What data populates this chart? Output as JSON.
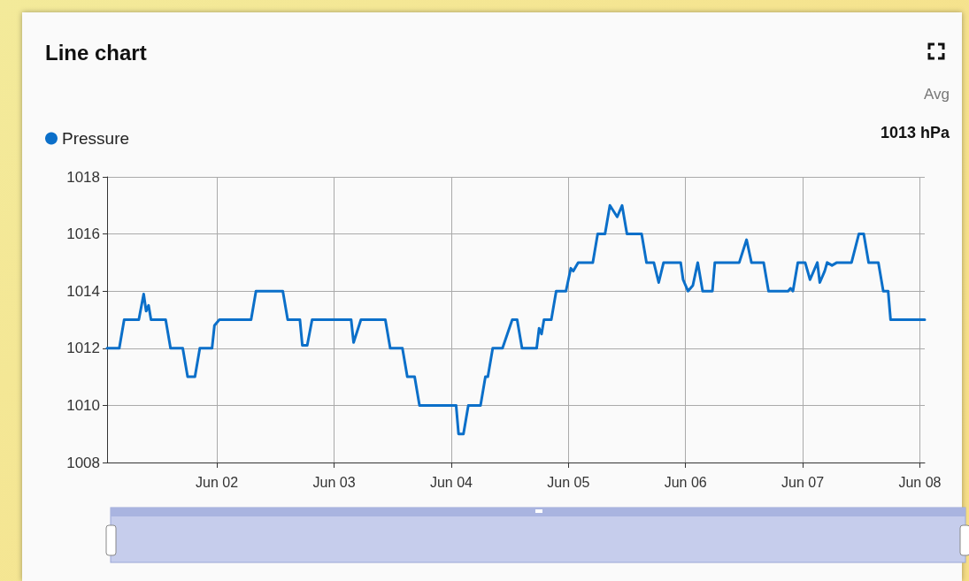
{
  "chart_data": {
    "type": "line",
    "title": "Line chart",
    "annotations": [
      "Avg",
      "1013 hPa"
    ],
    "legend": "top left",
    "grid": true,
    "marker": "none",
    "line_style": "solid",
    "xlim": [
      "--06-01T01:30",
      "--06-08T01:00"
    ],
    "xticks": [
      {
        "value": "--06-02",
        "label": "Jun 02"
      },
      {
        "value": "--06-03",
        "label": "Jun 03"
      },
      {
        "value": "--06-04",
        "label": "Jun 04"
      },
      {
        "value": "--06-05",
        "label": "Jun 05"
      },
      {
        "value": "--06-06",
        "label": "Jun 06"
      },
      {
        "value": "--06-07",
        "label": "Jun 07"
      },
      {
        "value": "--06-08",
        "label": "Jun 08"
      }
    ],
    "ylim": [
      1008,
      1018
    ],
    "yticks": [
      1008,
      1010,
      1012,
      1014,
      1016,
      1018
    ],
    "series": [
      {
        "name": "Pressure",
        "color": "#0b6fc9",
        "x": [
          "--06-01T01:30",
          "--06-01T04:00",
          "--06-01T05:00",
          "--06-01T08:00",
          "--06-01T09:00",
          "--06-01T09:30",
          "--06-01T10:00",
          "--06-01T10:30",
          "--06-01T13:30",
          "--06-01T14:30",
          "--06-01T17:00",
          "--06-01T18:00",
          "--06-01T19:30",
          "--06-01T20:30",
          "--06-01T23:00",
          "--06-01T23:30",
          "--06-02T00:30",
          "--06-02T07:00",
          "--06-02T08:00",
          "--06-02T13:30",
          "--06-02T14:30",
          "--06-02T17:00",
          "--06-02T17:30",
          "--06-02T18:30",
          "--06-02T19:30",
          "--06-03T03:30",
          "--06-03T04:00",
          "--06-03T05:30",
          "--06-03T10:30",
          "--06-03T11:30",
          "--06-03T14:00",
          "--06-03T15:00",
          "--06-03T16:30",
          "--06-03T17:30",
          "--06-04T01:00",
          "--06-04T01:30",
          "--06-04T02:30",
          "--06-04T03:30",
          "--06-04T06:00",
          "--06-04T07:00",
          "--06-04T07:30",
          "--06-04T08:30",
          "--06-04T10:30",
          "--06-04T12:30",
          "--06-04T13:30",
          "--06-04T14:30",
          "--06-04T17:30",
          "--06-04T18:00",
          "--06-04T18:30",
          "--06-04T19:00",
          "--06-04T20:30",
          "--06-04T21:30",
          "--06-04T23:30",
          "--06-05T00:30",
          "--06-05T01:00",
          "--06-05T02:00",
          "--06-05T05:00",
          "--06-05T06:00",
          "--06-05T07:30",
          "--06-05T08:30",
          "--06-05T10:00",
          "--06-05T11:00",
          "--06-05T12:00",
          "--06-05T15:00",
          "--06-05T16:00",
          "--06-05T17:30",
          "--06-05T18:30",
          "--06-05T19:30",
          "--06-05T23:00",
          "--06-05T23:30",
          "--06-06T00:30",
          "--06-06T01:30",
          "--06-06T02:30",
          "--06-06T03:30",
          "--06-06T05:30",
          "--06-06T06:00",
          "--06-06T11:00",
          "--06-06T12:30",
          "--06-06T13:30",
          "--06-06T16:00",
          "--06-06T17:00",
          "--06-06T21:00",
          "--06-06T21:30",
          "--06-06T22:00",
          "--06-06T23:00",
          "--06-07T00:30",
          "--06-07T01:30",
          "--06-07T03:00",
          "--06-07T03:30",
          "--06-07T04:30",
          "--06-07T05:00",
          "--06-07T06:00",
          "--06-07T07:00",
          "--06-07T10:00",
          "--06-07T11:30",
          "--06-07T12:30",
          "--06-07T13:30",
          "--06-07T15:30",
          "--06-07T16:30",
          "--06-07T17:30",
          "--06-07T18:00",
          "--06-08T01:00"
        ],
        "values": [
          1012,
          1012,
          1013,
          1013,
          1013.9,
          1013.3,
          1013.5,
          1013,
          1013,
          1012,
          1012,
          1011,
          1011,
          1012,
          1012,
          1012.8,
          1013,
          1013,
          1014,
          1014,
          1013,
          1013,
          1012.1,
          1012.1,
          1013,
          1013,
          1012.2,
          1013,
          1013,
          1012,
          1012,
          1011,
          1011,
          1010,
          1010,
          1009,
          1009,
          1010,
          1010,
          1011,
          1011,
          1012,
          1012,
          1013,
          1013,
          1012,
          1012,
          1012.7,
          1012.5,
          1013,
          1013,
          1014,
          1014,
          1014.8,
          1014.7,
          1015,
          1015,
          1016,
          1016,
          1017,
          1016.6,
          1017,
          1016,
          1016,
          1015,
          1015,
          1014.3,
          1015,
          1015,
          1014.4,
          1014,
          1014.2,
          1015,
          1014,
          1014,
          1015,
          1015,
          1015.8,
          1015,
          1015,
          1014,
          1014,
          1014.1,
          1014,
          1015,
          1015,
          1014.4,
          1015,
          1014.3,
          1014.7,
          1015,
          1014.9,
          1015,
          1015,
          1016,
          1016,
          1015,
          1015,
          1014,
          1014,
          1013,
          1013
        ]
      }
    ]
  }
}
